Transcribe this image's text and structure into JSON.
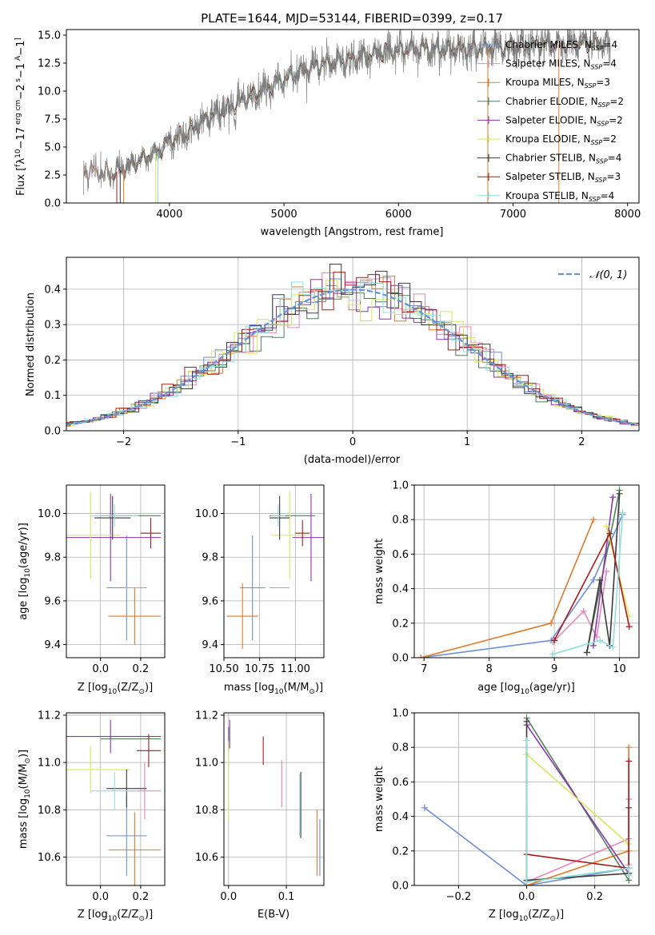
{
  "palette": {
    "chabrier_miles": "#6b8fd6",
    "salpeter_miles": "#e884b8",
    "kroupa_miles": "#df7a28",
    "chabrier_elodie": "#4f7e58",
    "salpeter_elodie": "#8e33b0",
    "kroupa_elodie": "#d7e85a",
    "chabrier_stelib": "#3a3a3a",
    "salpeter_stelib": "#aa1a1a",
    "kroupa_stelib": "#8ee0dc",
    "spectrum": "#808080",
    "normal_curve": "#6495dc"
  },
  "chart_data": [
    {
      "id": "spectrum",
      "type": "line",
      "title": "PLATE=1644, MJD=53144, FIBERID=0399, z=0.17",
      "xlabel": "wavelength [Angstrom, rest frame]",
      "ylabel_parts": [
        "Flux [",
        "f",
        "λ",
        "10",
        "−17",
        " erg cm",
        "−2",
        " s",
        "−1",
        " A",
        "−1",
        "]"
      ],
      "xlim": [
        3100,
        8100
      ],
      "ylim": [
        0,
        15.5
      ],
      "xticks": [
        4000,
        5000,
        6000,
        7000,
        8000
      ],
      "yticks": [
        0.0,
        2.5,
        5.0,
        7.5,
        10.0,
        12.5,
        15.0
      ],
      "continuum_points": [
        [
          3250,
          3.0
        ],
        [
          3500,
          2.6
        ],
        [
          3700,
          3.6
        ],
        [
          3900,
          4.6
        ],
        [
          4000,
          5.6
        ],
        [
          4150,
          6.2
        ],
        [
          4300,
          7.4
        ],
        [
          4500,
          8.4
        ],
        [
          4700,
          9.5
        ],
        [
          4900,
          10.6
        ],
        [
          5100,
          11.5
        ],
        [
          5300,
          12.3
        ],
        [
          5600,
          12.9
        ],
        [
          5900,
          13.6
        ],
        [
          6200,
          13.8
        ],
        [
          6500,
          13.7
        ],
        [
          6800,
          13.9
        ],
        [
          7200,
          14.1
        ],
        [
          7600,
          14.2
        ],
        [
          7800,
          14.3
        ]
      ],
      "legend": [
        {
          "name": "Chabrier MILES",
          "nssp": "4",
          "color_key": "chabrier_miles"
        },
        {
          "name": "Salpeter MILES",
          "nssp": "4",
          "color_key": "salpeter_miles"
        },
        {
          "name": "Kroupa MILES",
          "nssp": "3",
          "color_key": "kroupa_miles"
        },
        {
          "name": "Chabrier ELODIE",
          "nssp": "2",
          "color_key": "chabrier_elodie"
        },
        {
          "name": "Salpeter ELODIE",
          "nssp": "2",
          "color_key": "salpeter_elodie"
        },
        {
          "name": "Kroupa ELODIE",
          "nssp": "2",
          "color_key": "kroupa_elodie"
        },
        {
          "name": "Chabrier STELIB",
          "nssp": "4",
          "color_key": "chabrier_stelib"
        },
        {
          "name": "Salpeter STELIB",
          "nssp": "3",
          "color_key": "salpeter_stelib"
        },
        {
          "name": "Kroupa STELIB",
          "nssp": "4",
          "color_key": "kroupa_stelib"
        }
      ],
      "legend_nssp_prefix": ", N",
      "legend_nssp_sub": "SSP",
      "legend_nssp_eq": "=",
      "legend_placement": "top-right",
      "grid": false
    },
    {
      "id": "residuals",
      "type": "histogram",
      "xlabel": "(data-model)/error",
      "ylabel": "Normed distribution",
      "xlim": [
        -2.5,
        2.5
      ],
      "ylim": [
        0,
        0.49
      ],
      "xticks": [
        -2,
        -1,
        0,
        1,
        2
      ],
      "yticks": [
        0.0,
        0.1,
        0.2,
        0.3,
        0.4
      ],
      "bin_width": 0.1,
      "legend_label": "𝒩(0, 1)",
      "legend_placement": "top-right",
      "grid": true
    },
    {
      "id": "age_vs_Z",
      "type": "errorbar",
      "xlabel_parts": [
        "Z [log",
        "10",
        "(Z/Z",
        "⊙",
        ")]"
      ],
      "ylabel_parts": [
        "age  [log",
        "10",
        "(age/yr)]"
      ],
      "xlim": [
        -0.17,
        0.32
      ],
      "ylim": [
        9.34,
        10.13
      ],
      "xticks": [
        0.0,
        0.2
      ],
      "yticks": [
        9.4,
        9.6,
        9.8,
        10.0
      ],
      "points": [
        {
          "k": "chabrier_miles",
          "x": 0.13,
          "xe": 0.1,
          "y": 9.66,
          "ye": 0.24
        },
        {
          "k": "salpeter_miles",
          "x": 0.17,
          "xe": 0.05,
          "y": 9.66,
          "ye": 0.0
        },
        {
          "k": "kroupa_miles",
          "x": 0.17,
          "xe": 0.13,
          "y": 9.53,
          "ye": 0.13
        },
        {
          "k": "chabrier_elodie",
          "x": 0.15,
          "xe": 0.15,
          "y": 9.99,
          "ye": 0.0
        },
        {
          "k": "salpeter_elodie",
          "x": 0.05,
          "xe": 0.25,
          "y": 9.89,
          "ye": 0.2
        },
        {
          "k": "kroupa_elodie",
          "x": -0.05,
          "xe": 0.15,
          "y": 9.9,
          "ye": 0.2
        },
        {
          "k": "chabrier_stelib",
          "x": 0.06,
          "xe": 0.09,
          "y": 9.98,
          "ye": 0.1
        },
        {
          "k": "salpeter_stelib",
          "x": 0.25,
          "xe": 0.05,
          "y": 9.91,
          "ye": 0.07
        },
        {
          "k": "kroupa_stelib",
          "x": 0.07,
          "xe": 0.12,
          "y": 9.99,
          "ye": 0.05
        }
      ],
      "grid": true
    },
    {
      "id": "age_vs_mass",
      "type": "errorbar",
      "xlabel_parts": [
        "mass [log",
        "10",
        "(M/M",
        "⊙",
        ")]"
      ],
      "ylabel_parts": [],
      "xlim": [
        10.5,
        11.2
      ],
      "ylim": [
        9.34,
        10.13
      ],
      "xticks": [
        10.5,
        10.75,
        11.0
      ],
      "xtick_labels": [
        "10.50",
        "10.75",
        "11.00"
      ],
      "yticks": [
        9.4,
        9.6,
        9.8,
        10.0
      ],
      "points": [
        {
          "k": "chabrier_miles",
          "x": 10.7,
          "xe": 0.09,
          "y": 9.66,
          "ye": 0.24
        },
        {
          "k": "salpeter_miles",
          "x": 10.89,
          "xe": 0.07,
          "y": 9.66,
          "ye": 0.0
        },
        {
          "k": "kroupa_miles",
          "x": 10.63,
          "xe": 0.11,
          "y": 9.53,
          "ye": 0.15
        },
        {
          "k": "chabrier_elodie",
          "x": 10.98,
          "xe": 0.16,
          "y": 9.99,
          "ye": 0.0
        },
        {
          "k": "salpeter_elodie",
          "x": 11.11,
          "xe": 0.13,
          "y": 9.89,
          "ye": 0.2
        },
        {
          "k": "kroupa_elodie",
          "x": 10.96,
          "xe": 0.13,
          "y": 9.9,
          "ye": 0.2
        },
        {
          "k": "chabrier_stelib",
          "x": 10.89,
          "xe": 0.07,
          "y": 9.98,
          "ye": 0.1
        },
        {
          "k": "salpeter_stelib",
          "x": 11.05,
          "xe": 0.05,
          "y": 9.91,
          "ye": 0.06
        },
        {
          "k": "kroupa_stelib",
          "x": 10.88,
          "xe": 0.05,
          "y": 9.99,
          "ye": 0.05
        }
      ],
      "grid": true
    },
    {
      "id": "weight_vs_age",
      "type": "line",
      "xlabel_parts": [
        "age  [log",
        "10",
        "(age/yr)]"
      ],
      "ylabel": "mass weight",
      "xlim": [
        6.85,
        10.3
      ],
      "ylim": [
        0,
        1.0
      ],
      "xticks": [
        7,
        8,
        9,
        10
      ],
      "yticks": [
        0.0,
        0.2,
        0.4,
        0.6,
        0.8,
        1.0
      ],
      "series": [
        {
          "k": "chabrier_miles",
          "x": [
            6.95,
            8.95,
            9.6,
            10.05
          ],
          "y": [
            0.0,
            0.1,
            0.45,
            0.83
          ]
        },
        {
          "k": "salpeter_miles",
          "x": [
            8.98,
            9.45,
            9.65,
            9.8
          ],
          "y": [
            0.09,
            0.27,
            0.12,
            0.5
          ]
        },
        {
          "k": "kroupa_miles",
          "x": [
            6.95,
            8.95,
            9.6
          ],
          "y": [
            0.0,
            0.2,
            0.8
          ]
        },
        {
          "k": "chabrier_elodie",
          "x": [
            9.5,
            10.0
          ],
          "y": [
            0.03,
            0.97
          ]
        },
        {
          "k": "salpeter_elodie",
          "x": [
            9.6,
            9.9
          ],
          "y": [
            0.07,
            0.93
          ]
        },
        {
          "k": "kroupa_elodie",
          "x": [
            9.8,
            10.15
          ],
          "y": [
            0.76,
            0.24
          ]
        },
        {
          "k": "chabrier_stelib",
          "x": [
            9.5,
            9.7,
            9.85,
            10.0
          ],
          "y": [
            0.03,
            0.45,
            0.07,
            0.95
          ]
        },
        {
          "k": "salpeter_stelib",
          "x": [
            9.0,
            9.85,
            10.15
          ],
          "y": [
            0.1,
            0.72,
            0.18
          ]
        },
        {
          "k": "kroupa_stelib",
          "x": [
            8.97,
            9.7,
            9.9,
            10.05
          ],
          "y": [
            0.02,
            0.1,
            0.06,
            0.84
          ]
        }
      ],
      "grid": true
    },
    {
      "id": "mass_vs_Z",
      "type": "errorbar",
      "xlabel_parts": [
        "Z [log",
        "10",
        "(Z/Z",
        "⊙",
        ")]"
      ],
      "ylabel_parts": [
        "mass [log",
        "10",
        "(M/M",
        "⊙",
        ")]"
      ],
      "xlim": [
        -0.17,
        0.32
      ],
      "ylim": [
        10.48,
        11.21
      ],
      "xticks": [
        0.0,
        0.2
      ],
      "yticks": [
        10.6,
        10.8,
        11.0,
        11.2
      ],
      "points": [
        {
          "k": "chabrier_miles",
          "x": 0.13,
          "xe": 0.1,
          "y": 10.69,
          "ye": 0.17
        },
        {
          "k": "salpeter_miles",
          "x": 0.22,
          "xe": 0.08,
          "y": 10.88,
          "ye": 0.12
        },
        {
          "k": "kroupa_miles",
          "x": 0.17,
          "xe": 0.13,
          "y": 10.63,
          "ye": 0.16
        },
        {
          "k": "chabrier_elodie",
          "x": 0.15,
          "xe": 0.15,
          "y": 11.1,
          "ye": 0.0
        },
        {
          "k": "salpeter_elodie",
          "x": 0.05,
          "xe": 0.25,
          "y": 11.11,
          "ye": 0.07
        },
        {
          "k": "kroupa_elodie",
          "x": -0.05,
          "xe": 0.2,
          "y": 10.97,
          "ye": 0.1
        },
        {
          "k": "chabrier_stelib",
          "x": 0.13,
          "xe": 0.1,
          "y": 10.89,
          "ye": 0.08
        },
        {
          "k": "salpeter_stelib",
          "x": 0.24,
          "xe": 0.06,
          "y": 11.05,
          "ye": 0.07
        },
        {
          "k": "kroupa_stelib",
          "x": 0.07,
          "xe": 0.12,
          "y": 10.88,
          "ye": 0.08
        }
      ],
      "grid": true
    },
    {
      "id": "mass_vs_ebv",
      "type": "errorbar",
      "xlabel": "E(B-V)",
      "ylabel_parts": [],
      "xlim": [
        -0.008,
        0.165
      ],
      "ylim": [
        10.48,
        11.21
      ],
      "xticks": [
        0.0,
        0.1
      ],
      "yticks": [
        10.6,
        10.8,
        11.0,
        11.2
      ],
      "points": [
        {
          "k": "chabrier_miles",
          "x": 0.158,
          "xe": 0.0,
          "y": 10.64,
          "ye": 0.12
        },
        {
          "k": "salpeter_miles",
          "x": 0.092,
          "xe": 0.0,
          "y": 10.91,
          "ye": 0.1
        },
        {
          "k": "kroupa_miles",
          "x": 0.153,
          "xe": 0.0,
          "y": 10.66,
          "ye": 0.14
        },
        {
          "k": "chabrier_elodie",
          "x": 0.0,
          "xe": 0.0,
          "y": 11.1,
          "ye": 0.05
        },
        {
          "k": "salpeter_elodie",
          "x": 0.002,
          "xe": 0.0,
          "y": 11.12,
          "ye": 0.06
        },
        {
          "k": "kroupa_elodie",
          "x": 0.0,
          "xe": 0.0,
          "y": 10.92,
          "ye": 0.17
        },
        {
          "k": "chabrier_stelib",
          "x": 0.125,
          "xe": 0.0,
          "y": 10.82,
          "ye": 0.14
        },
        {
          "k": "salpeter_stelib",
          "x": 0.06,
          "xe": 0.0,
          "y": 11.05,
          "ye": 0.06
        },
        {
          "k": "kroupa_stelib",
          "x": 0.123,
          "xe": 0.0,
          "y": 10.82,
          "ye": 0.13
        }
      ],
      "grid": true
    },
    {
      "id": "weight_vs_Z",
      "type": "line",
      "xlabel_parts": [
        "Z [log",
        "10",
        "(Z/Z",
        "⊙",
        ")]"
      ],
      "ylabel": "mass weight",
      "xlim": [
        -0.33,
        0.33
      ],
      "ylim": [
        0,
        1.0
      ],
      "xticks": [
        -0.2,
        0.0,
        0.2
      ],
      "yticks": [
        0.0,
        0.2,
        0.4,
        0.6,
        0.8,
        1.0
      ],
      "series": [
        {
          "k": "chabrier_miles",
          "x": [
            -0.3,
            0.0,
            0.3,
            0.3
          ],
          "y": [
            0.45,
            0.0,
            0.1,
            0.06
          ]
        },
        {
          "k": "salpeter_miles",
          "x": [
            0.0,
            0.3,
            0.3,
            0.3
          ],
          "y": [
            0.02,
            0.27,
            0.5,
            0.12
          ]
        },
        {
          "k": "kroupa_miles",
          "x": [
            0.0,
            0.3,
            0.3
          ],
          "y": [
            0.0,
            0.2,
            0.8
          ]
        },
        {
          "k": "chabrier_elodie",
          "x": [
            0.0,
            0.3
          ],
          "y": [
            0.97,
            0.03
          ]
        },
        {
          "k": "salpeter_elodie",
          "x": [
            0.0,
            0.3
          ],
          "y": [
            0.93,
            0.07
          ]
        },
        {
          "k": "kroupa_elodie",
          "x": [
            0.0,
            0.3
          ],
          "y": [
            0.76,
            0.24
          ]
        },
        {
          "k": "chabrier_stelib",
          "x": [
            0.0,
            0.0,
            0.3,
            0.3
          ],
          "y": [
            0.95,
            0.03,
            0.07,
            0.45
          ]
        },
        {
          "k": "salpeter_stelib",
          "x": [
            0.0,
            0.3,
            0.3
          ],
          "y": [
            0.18,
            0.1,
            0.72
          ]
        },
        {
          "k": "kroupa_stelib",
          "x": [
            0.0,
            0.0,
            0.3,
            0.3
          ],
          "y": [
            0.84,
            0.02,
            0.1,
            0.06
          ]
        }
      ],
      "grid": true
    }
  ]
}
